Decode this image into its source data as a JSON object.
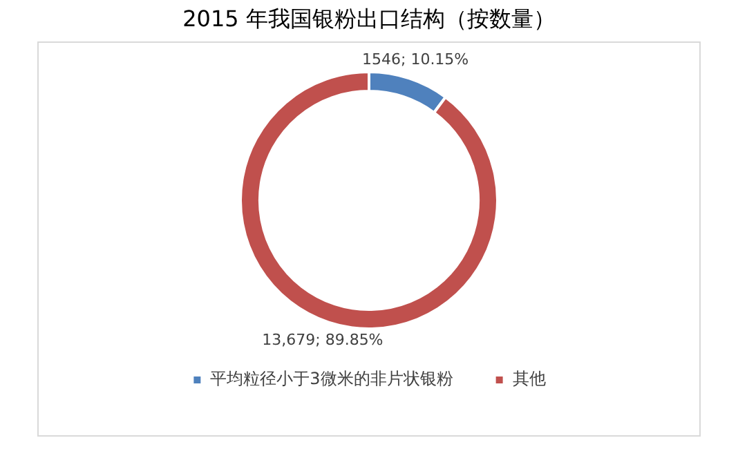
{
  "chart_data": {
    "type": "donut",
    "title": "2015 年我国银粉出口结构（按数量）",
    "categories": [
      "平均粒径小于3微米的非片状银粉",
      "其他"
    ],
    "values": [
      1546,
      13679
    ],
    "colors": [
      "#4f81bd",
      "#c0504d"
    ],
    "value_labels": [
      "1546; 10.15%",
      "13,679; 89.85%"
    ],
    "legend": "bottom"
  }
}
